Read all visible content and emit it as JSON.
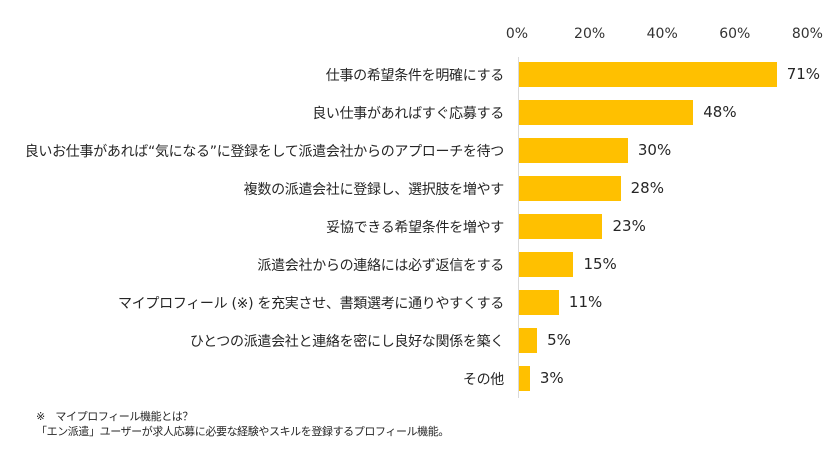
{
  "chart_data": {
    "type": "bar",
    "orientation": "horizontal",
    "title": "",
    "xlabel": "",
    "ylabel": "",
    "xlim": [
      0,
      80
    ],
    "x_ticks": [
      "0%",
      "20%",
      "40%",
      "60%",
      "80%"
    ],
    "x_axis_position": "top",
    "grid": false,
    "legend": null,
    "bar_color": "#ffc000",
    "categories": [
      "仕事の希望条件を明確にする",
      "良い仕事があればすぐ応募する",
      "良いお仕事があれば“気になる”に登録をして派遣会社からのアプローチを待つ",
      "複数の派遣会社に登録し、選択肢を増やす",
      "妥協できる希望条件を増やす",
      "派遣会社からの連絡には必ず返信をする",
      "マイプロフィール（※）を充実させ、書類選考に通りやすくする",
      "ひとつの派遣会社と連絡を密にし良好な関係を築く",
      "その他"
    ],
    "values": [
      71,
      48,
      30,
      28,
      23,
      15,
      11,
      5,
      3
    ],
    "value_labels": [
      "71%",
      "48%",
      "30%",
      "28%",
      "23%",
      "15%",
      "11%",
      "5%",
      "3%"
    ]
  },
  "rows": [
    {
      "label": "仕事の希望条件を明確にする",
      "value": 71,
      "value_label": "71%"
    },
    {
      "label": "良い仕事があればすぐ応募する",
      "value": 48,
      "value_label": "48%"
    },
    {
      "label": "良いお仕事があれば“気になる”に登録をして派遣会社からのアプローチを待つ",
      "value": 30,
      "value_label": "30%"
    },
    {
      "label": "複数の派遣会社に登録し、選択肢を増やす",
      "value": 28,
      "value_label": "28%"
    },
    {
      "label": "妥協できる希望条件を増やす",
      "value": 23,
      "value_label": "23%"
    },
    {
      "label": "派遣会社からの連絡には必ず返信をする",
      "value": 15,
      "value_label": "15%"
    },
    {
      "label": "マイプロフィール (※) を充実させ、書類選考に通りやすくする",
      "value": 11,
      "value_label": "11%"
    },
    {
      "label": "ひとつの派遣会社と連絡を密にし良好な関係を築く",
      "value": 5,
      "value_label": "5%"
    },
    {
      "label": "その他",
      "value": 3,
      "value_label": "3%"
    }
  ],
  "ticks": [
    "0%",
    "20%",
    "40%",
    "60%",
    "80%"
  ],
  "footnote": {
    "line1": "※　マイプロフィール機能とは？",
    "line2": "「エン派遣」ユーザーが求人応募に必要な経験やスキルを登録するプロフィール機能。"
  }
}
